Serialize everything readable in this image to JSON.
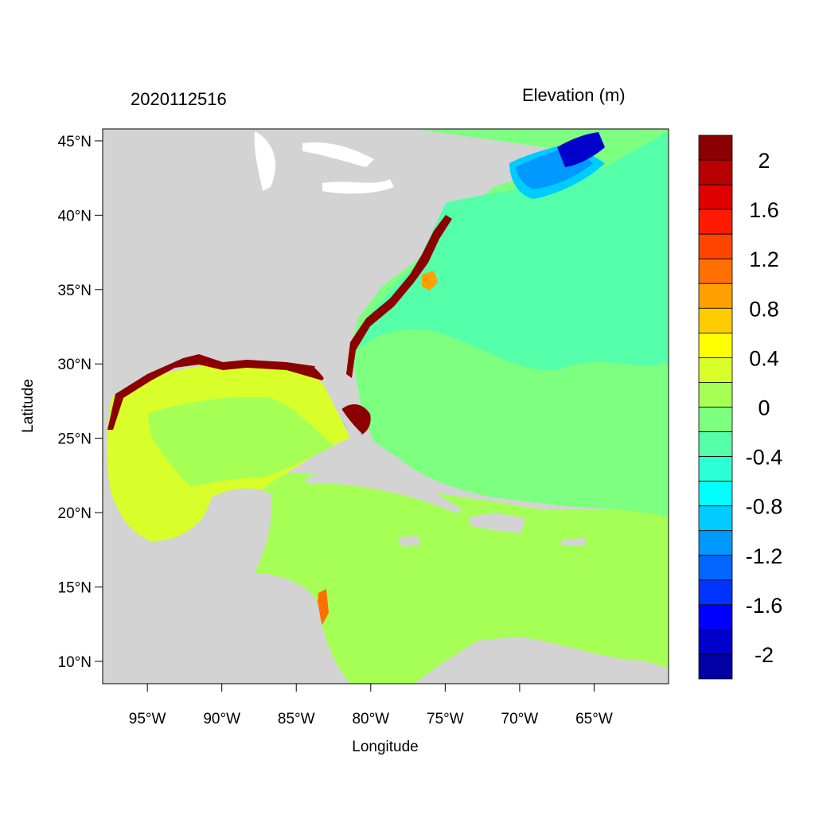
{
  "title": {
    "left": "2020112516",
    "right": "Elevation (m)"
  },
  "axes": {
    "xlabel": "Longitude",
    "ylabel": "Latitude",
    "lon_ticks": [
      {
        "value": -95,
        "label": "95°W"
      },
      {
        "value": -90,
        "label": "90°W"
      },
      {
        "value": -85,
        "label": "85°W"
      },
      {
        "value": -80,
        "label": "80°W"
      },
      {
        "value": -75,
        "label": "75°W"
      },
      {
        "value": -70,
        "label": "70°W"
      },
      {
        "value": -65,
        "label": "65°W"
      }
    ],
    "lat_ticks": [
      {
        "value": 45,
        "label": "45°N"
      },
      {
        "value": 40,
        "label": "40°N"
      },
      {
        "value": 35,
        "label": "35°N"
      },
      {
        "value": 30,
        "label": "30°N"
      },
      {
        "value": 25,
        "label": "25°N"
      },
      {
        "value": 20,
        "label": "20°N"
      },
      {
        "value": 15,
        "label": "15°N"
      },
      {
        "value": 10,
        "label": "10°N"
      }
    ],
    "lon_range": [
      -98,
      -60
    ],
    "lat_range": [
      8.5,
      45.8
    ]
  },
  "colorbar": {
    "colors": [
      "#8b0000",
      "#b80000",
      "#e00000",
      "#ff1a00",
      "#ff4400",
      "#ff7000",
      "#ffa000",
      "#ffcc00",
      "#ffff00",
      "#d8ff2a",
      "#a6ff55",
      "#7dff80",
      "#55ffaa",
      "#2bffd4",
      "#00ffff",
      "#00ccff",
      "#0099ff",
      "#0066ff",
      "#0033ff",
      "#0000ff",
      "#0000cc",
      "#0000a5"
    ],
    "labels": [
      "2",
      "1.6",
      "1.2",
      "0.8",
      "0.4",
      "0",
      "-0.4",
      "-0.8",
      "-1.2",
      "-1.6",
      "-2"
    ]
  },
  "palette": {
    "land": "#d3d3d3",
    "atlantic": "#55ffaa",
    "caribbean": "#a6ff55",
    "gulf": "#d8ff2a",
    "high_surge": "#8b0000",
    "gulf_of_maine": "#0066ff"
  }
}
